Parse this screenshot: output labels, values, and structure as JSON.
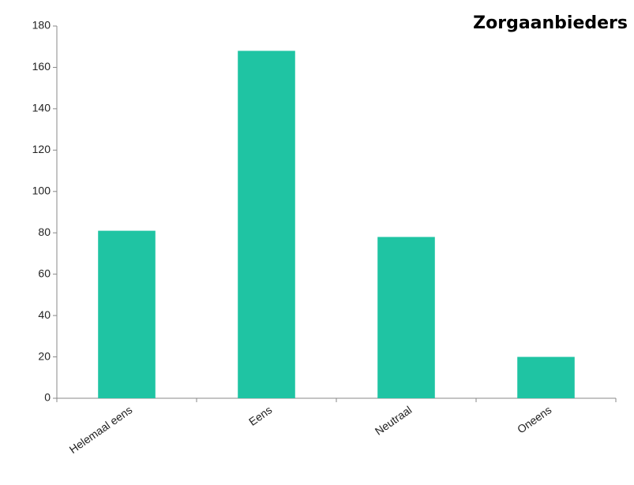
{
  "chart_data": {
    "type": "bar",
    "title": "Zorgaanbieders",
    "categories": [
      "Helemaal eens",
      "Eens",
      "Neutraal",
      "Oneens"
    ],
    "values": [
      81,
      168,
      78,
      20
    ],
    "color": "#1fc4a3",
    "ylim": [
      0,
      180
    ],
    "yticks": [
      0,
      20,
      40,
      60,
      80,
      100,
      120,
      140,
      160,
      180
    ],
    "grid": false
  }
}
